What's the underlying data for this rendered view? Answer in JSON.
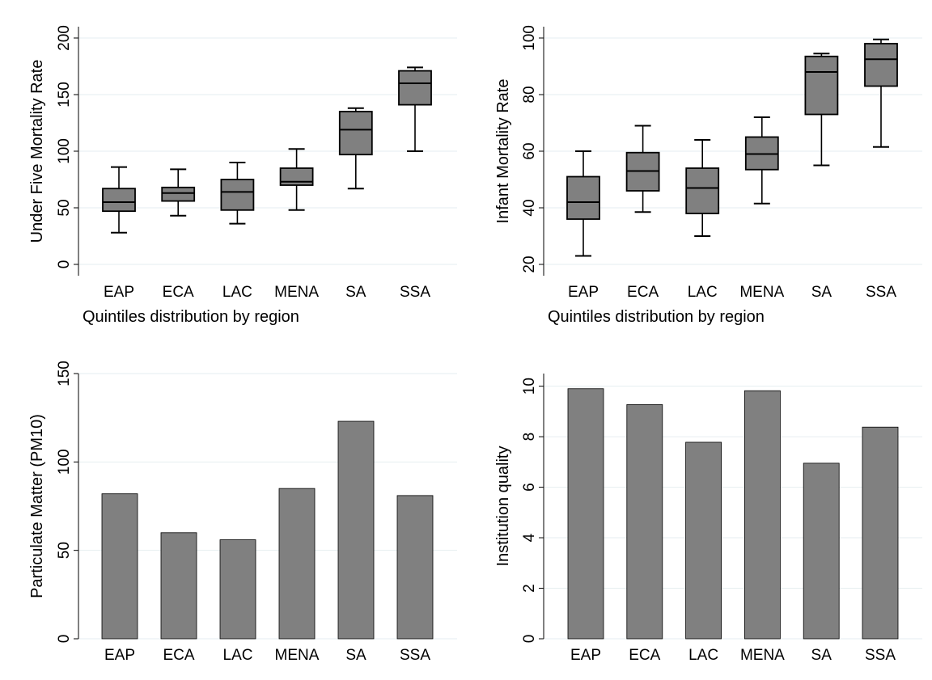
{
  "chart_data": [
    {
      "type": "box",
      "ylabel": "Under Five Mortality Rate",
      "xlabel": "Quintiles distribution by region",
      "categories": [
        "EAP",
        "ECA",
        "LAC",
        "MENA",
        "SA",
        "SSA"
      ],
      "ylim": [
        -10,
        210
      ],
      "yticks": [
        0,
        50,
        100,
        150,
        200
      ],
      "grid": true,
      "boxes": [
        {
          "min": 28,
          "q1": 47,
          "median": 55,
          "q3": 67,
          "max": 86
        },
        {
          "min": 43,
          "q1": 56,
          "median": 63,
          "q3": 68,
          "max": 84
        },
        {
          "min": 36,
          "q1": 48,
          "median": 64,
          "q3": 75,
          "max": 90
        },
        {
          "min": 48,
          "q1": 70,
          "median": 73,
          "q3": 85,
          "max": 102
        },
        {
          "min": 67,
          "q1": 97,
          "median": 119,
          "q3": 135,
          "max": 138
        },
        {
          "min": 100,
          "q1": 141,
          "median": 160,
          "q3": 171,
          "max": 174
        }
      ]
    },
    {
      "type": "box",
      "ylabel": "Infant Mortality Rate",
      "xlabel": "Quintiles distribution by region",
      "categories": [
        "EAP",
        "ECA",
        "LAC",
        "MENA",
        "SA",
        "SSA"
      ],
      "ylim": [
        16,
        104
      ],
      "yticks": [
        20,
        40,
        60,
        80,
        100
      ],
      "grid": true,
      "boxes": [
        {
          "min": 23,
          "q1": 36,
          "median": 42,
          "q3": 51,
          "max": 60
        },
        {
          "min": 38.5,
          "q1": 46,
          "median": 53,
          "q3": 59.5,
          "max": 69
        },
        {
          "min": 30,
          "q1": 38,
          "median": 47,
          "q3": 54,
          "max": 64
        },
        {
          "min": 41.5,
          "q1": 53.5,
          "median": 59,
          "q3": 65,
          "max": 72
        },
        {
          "min": 55,
          "q1": 73,
          "median": 88,
          "q3": 93.5,
          "max": 94.5
        },
        {
          "min": 61.5,
          "q1": 83,
          "median": 92.5,
          "q3": 98,
          "max": 99.5
        }
      ]
    },
    {
      "type": "bar",
      "ylabel": "Particulate Matter (PM10)",
      "xlabel": "",
      "categories": [
        "EAP",
        "ECA",
        "LAC",
        "MENA",
        "SA",
        "SSA"
      ],
      "values": [
        82,
        60,
        56,
        85,
        123,
        81
      ],
      "ylim": [
        0,
        150
      ],
      "yticks": [
        0,
        50,
        100,
        150
      ],
      "grid": true
    },
    {
      "type": "bar",
      "ylabel": "Institution quality",
      "xlabel": "",
      "categories": [
        "EAP",
        "ECA",
        "LAC",
        "MENA",
        "SA",
        "SSA"
      ],
      "values": [
        9.9,
        9.27,
        7.78,
        9.82,
        6.95,
        8.38
      ],
      "ylim": [
        0,
        10.5
      ],
      "yticks": [
        0,
        2,
        4,
        6,
        8,
        10
      ],
      "grid": true
    }
  ],
  "style": {
    "fill": "#808080",
    "stroke": "#000000",
    "grid": "#e6eef0",
    "background": "#ffffff"
  }
}
